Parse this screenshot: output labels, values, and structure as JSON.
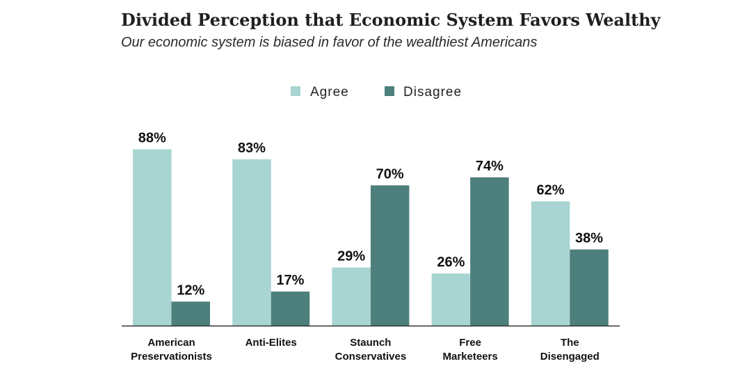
{
  "chart_data": {
    "type": "bar",
    "title": "Divided Perception that Economic System Favors Wealthy",
    "subtitle": "Our economic system is biased in favor of the wealthiest Americans",
    "categories": [
      [
        "American",
        "Preservationists"
      ],
      [
        "Anti-Elites"
      ],
      [
        "Staunch",
        "Conservatives"
      ],
      [
        "Free",
        "Marketeers"
      ],
      [
        "The",
        "Disengaged"
      ]
    ],
    "series": [
      {
        "name": "Agree",
        "values": [
          88,
          83,
          29,
          26,
          62
        ],
        "labels": [
          "88%",
          "83%",
          "29%",
          "26%",
          "62%"
        ],
        "color": "#a8d5d1"
      },
      {
        "name": "Disagree",
        "values": [
          12,
          17,
          70,
          74,
          38
        ],
        "labels": [
          "12%",
          "17%",
          "70%",
          "74%",
          "38%"
        ],
        "color": "#4d7f7c"
      }
    ],
    "ylim": [
      0,
      100
    ],
    "grid": false,
    "legend": "top-center",
    "xlabel": "",
    "ylabel": ""
  }
}
